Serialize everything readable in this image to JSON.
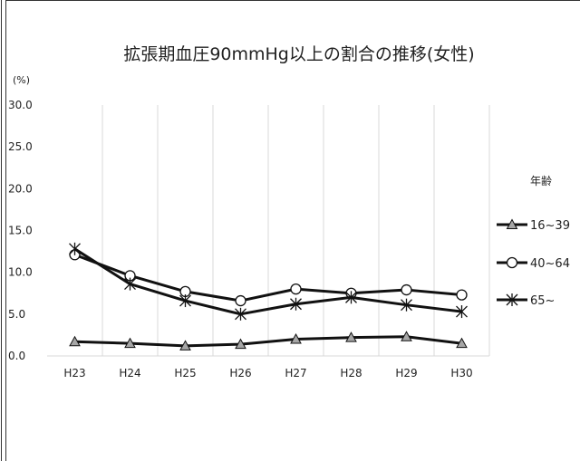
{
  "chart_data": {
    "type": "line",
    "title": "拡張期血圧90mmHg以上の割合の推移(女性)",
    "unit_label": "(%)",
    "categories": [
      "H23",
      "H24",
      "H25",
      "H26",
      "H27",
      "H28",
      "H29",
      "H30"
    ],
    "ylim": [
      0,
      30
    ],
    "y_ticks": [
      "0.0",
      "5.0",
      "10.0",
      "15.0",
      "20.0",
      "25.0",
      "30.0"
    ],
    "grid": "vertical",
    "legend_title": "年齢",
    "legend_position": "right",
    "series": [
      {
        "name": "16~39",
        "marker": "triangle",
        "values": [
          1.7,
          1.5,
          1.2,
          1.4,
          2.0,
          2.2,
          2.3,
          1.5
        ]
      },
      {
        "name": "40~64",
        "marker": "circle",
        "values": [
          12.1,
          9.6,
          7.7,
          6.6,
          8.0,
          7.5,
          7.9,
          7.3
        ]
      },
      {
        "name": "65~",
        "marker": "star",
        "values": [
          12.8,
          8.6,
          6.6,
          5.0,
          6.2,
          7.0,
          6.1,
          5.3
        ]
      }
    ]
  }
}
